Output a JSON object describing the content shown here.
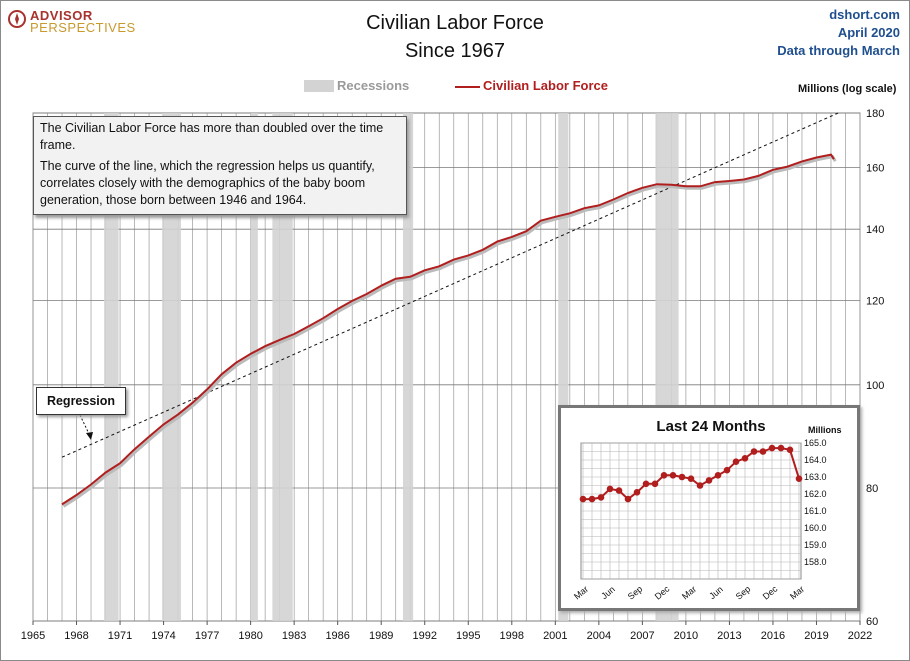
{
  "logo": {
    "line1": "ADVISOR",
    "line2": "PERSPECTIVES"
  },
  "title": {
    "line1": "Civilian Labor Force",
    "line2": "Since 1967"
  },
  "source": {
    "site": "dshort.com",
    "date": "April 2020",
    "through": "Data through March"
  },
  "legend": {
    "recessions": "Recessions",
    "series": "Civilian Labor Force"
  },
  "colors": {
    "series": "#b01e1e",
    "recession": "#d3d3d3",
    "regression": "#111111",
    "source_text": "#1f4f8f"
  },
  "note": {
    "para1": "The Civilian Labor Force has more than doubled over the time frame.",
    "para2": "The curve of the line, which the regression helps us quantify, correlates closely with the demographics of the baby boom generation, those born between 1946 and 1964."
  },
  "regression_label": "Regression",
  "inset": {
    "title": "Last 24 Months",
    "units": "Millions"
  },
  "chart_data": [
    {
      "type": "line",
      "title": "Civilian Labor Force",
      "subtitle": "Since 1967",
      "ylabel": "Millions (log scale)",
      "yscale": "log",
      "ylim": [
        60,
        180
      ],
      "xlim": [
        1965,
        2022
      ],
      "yticks": [
        "60",
        "80",
        "100",
        "120",
        "140",
        "160",
        "180"
      ],
      "xticks": [
        "1965",
        "1968",
        "1971",
        "1974",
        "1977",
        "1980",
        "1983",
        "1986",
        "1989",
        "1992",
        "1995",
        "1998",
        "2001",
        "2004",
        "2007",
        "2010",
        "2013",
        "2016",
        "2019",
        "2022"
      ],
      "grid": true,
      "legend_position": "top-center",
      "recessions": [
        [
          1969.9,
          1970.9
        ],
        [
          1973.9,
          1975.2
        ],
        [
          1980.0,
          1980.5
        ],
        [
          1981.5,
          1982.9
        ],
        [
          1990.5,
          1991.2
        ],
        [
          2001.2,
          2001.9
        ],
        [
          2007.9,
          2009.5
        ]
      ],
      "series": [
        {
          "name": "Civilian Labor Force",
          "x": [
            1967.0,
            1968.0,
            1969.0,
            1970.0,
            1971.0,
            1972.0,
            1973.0,
            1974.0,
            1975.0,
            1976.0,
            1977.0,
            1978.0,
            1979.0,
            1980.0,
            1981.0,
            1982.0,
            1983.0,
            1984.0,
            1985.0,
            1986.0,
            1987.0,
            1988.0,
            1989.0,
            1990.0,
            1991.0,
            1992.0,
            1993.0,
            1994.0,
            1995.0,
            1996.0,
            1997.0,
            1998.0,
            1999.0,
            2000.0,
            2001.0,
            2002.0,
            2003.0,
            2004.0,
            2005.0,
            2006.0,
            2007.0,
            2008.0,
            2009.0,
            2010.0,
            2011.0,
            2012.0,
            2013.0,
            2014.0,
            2015.0,
            2016.0,
            2017.0,
            2018.0,
            2019.0,
            2020.0,
            2020.2
          ],
          "y": [
            77.2,
            78.8,
            80.6,
            82.7,
            84.4,
            87.0,
            89.4,
            91.8,
            93.8,
            96.2,
            99.0,
            102.3,
            104.9,
            106.9,
            108.7,
            110.2,
            111.6,
            113.5,
            115.5,
            117.8,
            119.9,
            121.7,
            123.9,
            125.8,
            126.3,
            128.1,
            129.2,
            131.1,
            132.3,
            133.9,
            136.3,
            137.7,
            139.4,
            142.6,
            143.8,
            144.9,
            146.5,
            147.4,
            149.3,
            151.4,
            153.1,
            154.3,
            154.1,
            153.6,
            153.6,
            155.0,
            155.4,
            155.9,
            157.1,
            159.2,
            160.3,
            162.1,
            163.5,
            164.5,
            162.9
          ]
        },
        {
          "name": "Regression",
          "x": [
            1967.0,
            2020.5
          ],
          "y": [
            85.5,
            180.0
          ]
        }
      ]
    },
    {
      "type": "line",
      "title": "Last 24 Months",
      "ylabel": "Millions",
      "ylim": [
        157.0,
        165.0
      ],
      "yticks": [
        "158.0",
        "159.0",
        "160.0",
        "161.0",
        "162.0",
        "163.0",
        "164.0",
        "165.0"
      ],
      "xticks": [
        "Mar",
        "Jun",
        "Sep",
        "Dec",
        "Mar",
        "Jun",
        "Sep",
        "Dec",
        "Mar"
      ],
      "grid": true,
      "series": [
        {
          "name": "Civilian Labor Force",
          "x": [
            "Mar 2018",
            "Apr 2018",
            "May 2018",
            "Jun 2018",
            "Jul 2018",
            "Aug 2018",
            "Sep 2018",
            "Oct 2018",
            "Nov 2018",
            "Dec 2018",
            "Jan 2019",
            "Feb 2019",
            "Mar 2019",
            "Apr 2019",
            "May 2019",
            "Jun 2019",
            "Jul 2019",
            "Aug 2019",
            "Sep 2019",
            "Oct 2019",
            "Nov 2019",
            "Dec 2019",
            "Jan 2020",
            "Feb 2020",
            "Mar 2020"
          ],
          "y": [
            161.7,
            161.7,
            161.8,
            162.3,
            162.2,
            161.7,
            162.1,
            162.6,
            162.6,
            163.1,
            163.1,
            163.0,
            162.9,
            162.5,
            162.8,
            163.1,
            163.4,
            163.9,
            164.1,
            164.5,
            164.5,
            164.7,
            164.7,
            164.6,
            162.9
          ]
        }
      ]
    }
  ]
}
